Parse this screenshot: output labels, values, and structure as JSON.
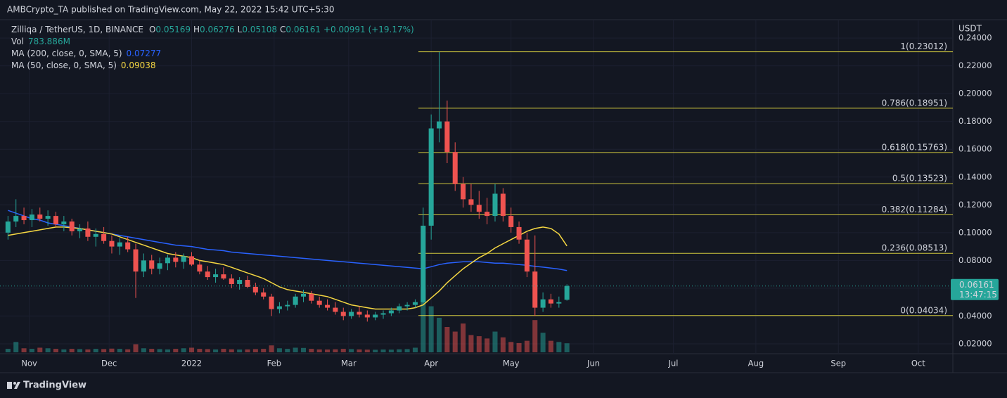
{
  "chart_data": {
    "type": "candlestick",
    "publisher": "AMBCrypto_TA published on TradingView.com, May 22, 2022 15:42 UTC+5:30",
    "title": "Zilliqa / TetherUS, 1D, BINANCE",
    "ohlc_letters": [
      "O",
      "H",
      "L",
      "C"
    ],
    "change": "+0.00991 (+19.17%)",
    "volume_name": "Vol",
    "volume_value_label": "783.886M",
    "currency": "USDT",
    "countdown": "13:47:15",
    "brand": "TradingView",
    "up_color": "#26a69a",
    "down_color": "#ef5350",
    "grid": true,
    "x": [
      -8,
      -5,
      -2,
      1,
      4,
      7,
      10,
      13,
      16,
      19,
      22,
      25,
      28,
      31,
      34,
      37,
      40,
      43,
      46,
      49,
      52,
      55,
      58,
      61,
      64,
      67,
      70,
      73,
      76,
      79,
      82,
      85,
      88,
      91,
      94,
      97,
      100,
      103,
      106,
      109,
      112,
      115,
      118,
      121,
      124,
      127,
      130,
      133,
      136,
      139,
      142,
      145,
      148,
      151,
      154,
      157,
      160,
      163,
      166,
      169,
      172,
      175,
      178,
      181,
      184,
      187,
      190,
      193,
      196,
      199,
      202
    ],
    "open": [
      0.1,
      0.108,
      0.112,
      0.109,
      0.113,
      0.11,
      0.112,
      0.106,
      0.108,
      0.101,
      0.103,
      0.097,
      0.099,
      0.094,
      0.09,
      0.093,
      0.088,
      0.072,
      0.08,
      0.074,
      0.078,
      0.082,
      0.079,
      0.083,
      0.077,
      0.072,
      0.068,
      0.07,
      0.067,
      0.063,
      0.066,
      0.061,
      0.057,
      0.054,
      0.045,
      0.047,
      0.048,
      0.054,
      0.056,
      0.051,
      0.048,
      0.046,
      0.043,
      0.04,
      0.043,
      0.041,
      0.039,
      0.041,
      0.042,
      0.044,
      0.047,
      0.048,
      0.05,
      0.105,
      0.175,
      0.18,
      0.158,
      0.135,
      0.124,
      0.12,
      0.115,
      0.112,
      0.128,
      0.112,
      0.104,
      0.095,
      0.072,
      0.046,
      0.052,
      0.049,
      0.05169
    ],
    "high": [
      0.112,
      0.124,
      0.118,
      0.117,
      0.118,
      0.116,
      0.115,
      0.112,
      0.11,
      0.106,
      0.108,
      0.103,
      0.104,
      0.098,
      0.096,
      0.097,
      0.092,
      0.085,
      0.084,
      0.082,
      0.084,
      0.086,
      0.085,
      0.086,
      0.08,
      0.076,
      0.074,
      0.075,
      0.07,
      0.068,
      0.069,
      0.064,
      0.06,
      0.056,
      0.05,
      0.051,
      0.056,
      0.059,
      0.058,
      0.054,
      0.052,
      0.05,
      0.046,
      0.045,
      0.047,
      0.044,
      0.043,
      0.044,
      0.046,
      0.049,
      0.05,
      0.052,
      0.118,
      0.185,
      0.23,
      0.195,
      0.165,
      0.14,
      0.135,
      0.13,
      0.125,
      0.135,
      0.132,
      0.118,
      0.108,
      0.1,
      0.098,
      0.057,
      0.056,
      0.054,
      0.06276
    ],
    "low": [
      0.095,
      0.104,
      0.106,
      0.104,
      0.108,
      0.105,
      0.104,
      0.101,
      0.098,
      0.096,
      0.094,
      0.09,
      0.092,
      0.085,
      0.084,
      0.086,
      0.053,
      0.068,
      0.07,
      0.07,
      0.073,
      0.075,
      0.074,
      0.076,
      0.07,
      0.066,
      0.064,
      0.066,
      0.06,
      0.059,
      0.06,
      0.055,
      0.052,
      0.04,
      0.042,
      0.044,
      0.046,
      0.05,
      0.049,
      0.046,
      0.044,
      0.041,
      0.037,
      0.038,
      0.039,
      0.036,
      0.037,
      0.038,
      0.04,
      0.042,
      0.044,
      0.046,
      0.049,
      0.095,
      0.165,
      0.15,
      0.13,
      0.118,
      0.115,
      0.11,
      0.106,
      0.108,
      0.108,
      0.1,
      0.092,
      0.068,
      0.04,
      0.043,
      0.046,
      0.046,
      0.05108
    ],
    "close": [
      0.108,
      0.112,
      0.109,
      0.113,
      0.11,
      0.112,
      0.106,
      0.108,
      0.101,
      0.103,
      0.097,
      0.099,
      0.094,
      0.09,
      0.093,
      0.088,
      0.072,
      0.08,
      0.074,
      0.078,
      0.082,
      0.079,
      0.083,
      0.077,
      0.072,
      0.068,
      0.07,
      0.067,
      0.063,
      0.066,
      0.061,
      0.057,
      0.054,
      0.045,
      0.047,
      0.048,
      0.054,
      0.056,
      0.051,
      0.048,
      0.046,
      0.043,
      0.04,
      0.043,
      0.041,
      0.039,
      0.041,
      0.042,
      0.044,
      0.047,
      0.048,
      0.05,
      0.105,
      0.175,
      0.18,
      0.158,
      0.135,
      0.124,
      0.12,
      0.115,
      0.112,
      0.128,
      0.112,
      0.104,
      0.095,
      0.072,
      0.046,
      0.052,
      0.049,
      0.05,
      0.06161
    ],
    "volume": [
      300,
      900,
      350,
      300,
      400,
      350,
      300,
      250,
      300,
      280,
      250,
      300,
      280,
      320,
      300,
      260,
      700,
      350,
      300,
      280,
      250,
      300,
      350,
      400,
      300,
      280,
      250,
      300,
      260,
      240,
      250,
      280,
      300,
      600,
      350,
      300,
      400,
      380,
      300,
      250,
      240,
      260,
      300,
      280,
      250,
      230,
      220,
      240,
      230,
      260,
      280,
      400,
      5500,
      4000,
      3000,
      2200,
      1800,
      2500,
      1500,
      1400,
      1200,
      1800,
      1300,
      900,
      800,
      1000,
      2800,
      1700,
      1000,
      900,
      783.886
    ],
    "series": [
      {
        "name": "MA (200, close, 0, SMA, 5)",
        "color": "#2962ff",
        "values": [
          0.116,
          0.114,
          0.112,
          0.11,
          0.109,
          0.107,
          0.106,
          0.105,
          0.104,
          0.103,
          0.102,
          0.101,
          0.1,
          0.099,
          0.098,
          0.097,
          0.096,
          0.095,
          0.094,
          0.093,
          0.092,
          0.091,
          0.0905,
          0.09,
          0.089,
          0.088,
          0.0875,
          0.087,
          0.086,
          0.0855,
          0.085,
          0.0845,
          0.084,
          0.0835,
          0.083,
          0.0825,
          0.082,
          0.0815,
          0.081,
          0.0805,
          0.08,
          0.0795,
          0.079,
          0.0785,
          0.078,
          0.0775,
          0.077,
          0.0765,
          0.076,
          0.0755,
          0.075,
          0.0745,
          0.074,
          0.0755,
          0.077,
          0.078,
          0.0785,
          0.079,
          0.079,
          0.079,
          0.0785,
          0.078,
          0.078,
          0.0775,
          0.077,
          0.0765,
          0.0758,
          0.0752,
          0.0745,
          0.0738,
          0.07277
        ]
      },
      {
        "name": "MA (50, close, 0, SMA, 5)",
        "color": "#f5d742",
        "values": [
          0.098,
          0.099,
          0.1,
          0.101,
          0.102,
          0.103,
          0.104,
          0.104,
          0.1035,
          0.103,
          0.102,
          0.101,
          0.1,
          0.099,
          0.097,
          0.095,
          0.093,
          0.091,
          0.089,
          0.087,
          0.085,
          0.084,
          0.083,
          0.082,
          0.08,
          0.079,
          0.078,
          0.077,
          0.075,
          0.073,
          0.071,
          0.069,
          0.067,
          0.064,
          0.061,
          0.059,
          0.058,
          0.057,
          0.056,
          0.055,
          0.054,
          0.052,
          0.05,
          0.048,
          0.047,
          0.046,
          0.045,
          0.045,
          0.045,
          0.045,
          0.045,
          0.046,
          0.048,
          0.053,
          0.058,
          0.064,
          0.069,
          0.074,
          0.078,
          0.082,
          0.085,
          0.089,
          0.092,
          0.095,
          0.098,
          0.101,
          0.103,
          0.104,
          0.103,
          0.099,
          0.09038
        ]
      }
    ],
    "fib_color": "#f0e442",
    "fib_levels": [
      {
        "value": 0.23012,
        "label": "1(0.23012)"
      },
      {
        "value": 0.18951,
        "label": "0.786(0.18951)"
      },
      {
        "value": 0.15763,
        "label": "0.618(0.15763)"
      },
      {
        "value": 0.13523,
        "label": "0.5(0.13523)"
      },
      {
        "value": 0.11284,
        "label": "0.382(0.11284)"
      },
      {
        "value": 0.08513,
        "label": "0.236(0.08513)"
      },
      {
        "value": 0.04034,
        "label": "0(0.04034)"
      }
    ],
    "xlim": [
      -11,
      347
    ],
    "xticks": [
      {
        "value": 0,
        "label": "Nov"
      },
      {
        "value": 30,
        "label": "Dec"
      },
      {
        "value": 61,
        "label": "2022"
      },
      {
        "value": 92,
        "label": "Feb"
      },
      {
        "value": 120,
        "label": "Mar"
      },
      {
        "value": 151,
        "label": "Apr"
      },
      {
        "value": 181,
        "label": "May"
      },
      {
        "value": 212,
        "label": "Jun"
      },
      {
        "value": 242,
        "label": "Jul"
      },
      {
        "value": 273,
        "label": "Aug"
      },
      {
        "value": 304,
        "label": "Sep"
      },
      {
        "value": 334,
        "label": "Oct"
      }
    ],
    "ylim": [
      0.0129,
      0.2532
    ],
    "yticks": [
      {
        "value": 0.02,
        "label": "0.02000"
      },
      {
        "value": 0.04,
        "label": "0.04000"
      },
      {
        "value": 0.06,
        "label": "0.06000"
      },
      {
        "value": 0.08,
        "label": "0.08000"
      },
      {
        "value": 0.1,
        "label": "0.10000"
      },
      {
        "value": 0.12,
        "label": "0.12000"
      },
      {
        "value": 0.14,
        "label": "0.14000"
      },
      {
        "value": 0.16,
        "label": "0.16000"
      },
      {
        "value": 0.18,
        "label": "0.18000"
      },
      {
        "value": 0.2,
        "label": "0.20000"
      },
      {
        "value": 0.22,
        "label": "0.22000"
      },
      {
        "value": 0.24,
        "label": "0.24000"
      }
    ]
  }
}
